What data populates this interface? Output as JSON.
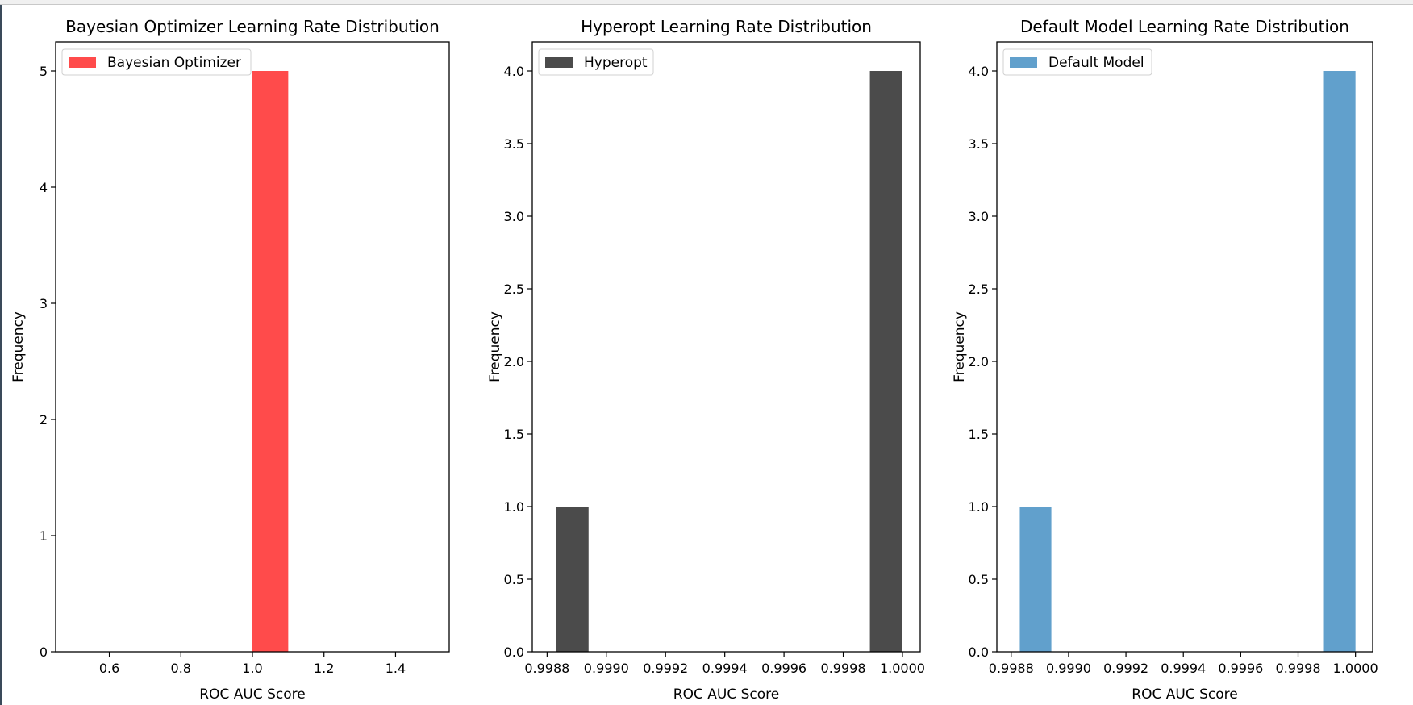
{
  "chart_data": [
    {
      "type": "bar",
      "title": "Bayesian Optimizer Learning Rate Distribution",
      "xlabel": "ROC AUC Score",
      "ylabel": "Frequency",
      "xlim": [
        0.45,
        1.55
      ],
      "ylim": [
        0,
        5.25
      ],
      "xticks": [
        0.6,
        0.8,
        1.0,
        1.2,
        1.4
      ],
      "xtick_labels": [
        "0.6",
        "0.8",
        "1.0",
        "1.2",
        "1.4"
      ],
      "yticks": [
        0,
        1,
        2,
        3,
        4,
        5
      ],
      "ytick_labels": [
        "0",
        "1",
        "2",
        "3",
        "4",
        "5"
      ],
      "legend": "top-left",
      "series": [
        {
          "name": "Bayesian Optimizer",
          "color": "#ff4b4b",
          "bins": [
            {
              "x0": 1.0,
              "x1": 1.1,
              "value": 5
            }
          ]
        }
      ]
    },
    {
      "type": "bar",
      "title": "Hyperopt Learning Rate Distribution",
      "xlabel": "ROC AUC Score",
      "ylabel": "Frequency",
      "xlim": [
        0.99875,
        1.00006
      ],
      "ylim": [
        0,
        4.2
      ],
      "xticks": [
        0.9988,
        0.999,
        0.9992,
        0.9994,
        0.9996,
        0.9998,
        1.0
      ],
      "xtick_labels": [
        "0.9988",
        "0.9990",
        "0.9992",
        "0.9994",
        "0.9996",
        "0.9998",
        "1.0000"
      ],
      "yticks": [
        0,
        0.5,
        1,
        1.5,
        2,
        2.5,
        3,
        3.5,
        4
      ],
      "ytick_labels": [
        "0.0",
        "0.5",
        "1.0",
        "1.5",
        "2.0",
        "2.5",
        "3.0",
        "3.5",
        "4.0"
      ],
      "legend": "top-left",
      "series": [
        {
          "name": "Hyperopt",
          "color": "#4b4b4b",
          "bins": [
            {
              "x0": 0.99883,
              "x1": 0.99894,
              "value": 1
            },
            {
              "x0": 0.99989,
              "x1": 1.0,
              "value": 4
            }
          ]
        }
      ]
    },
    {
      "type": "bar",
      "title": "Default Model Learning Rate Distribution",
      "xlabel": "ROC AUC Score",
      "ylabel": "Frequency",
      "xlim": [
        0.99875,
        1.00006
      ],
      "ylim": [
        0,
        4.2
      ],
      "xticks": [
        0.9988,
        0.999,
        0.9992,
        0.9994,
        0.9996,
        0.9998,
        1.0
      ],
      "xtick_labels": [
        "0.9988",
        "0.9990",
        "0.9992",
        "0.9994",
        "0.9996",
        "0.9998",
        "1.0000"
      ],
      "yticks": [
        0,
        0.5,
        1,
        1.5,
        2,
        2.5,
        3,
        3.5,
        4
      ],
      "ytick_labels": [
        "0.0",
        "0.5",
        "1.0",
        "1.5",
        "2.0",
        "2.5",
        "3.0",
        "3.5",
        "4.0"
      ],
      "legend": "top-left",
      "series": [
        {
          "name": "Default Model",
          "color": "#61a0cc",
          "bins": [
            {
              "x0": 0.99883,
              "x1": 0.99894,
              "value": 1
            },
            {
              "x0": 0.99989,
              "x1": 1.0,
              "value": 4
            }
          ]
        }
      ]
    }
  ]
}
